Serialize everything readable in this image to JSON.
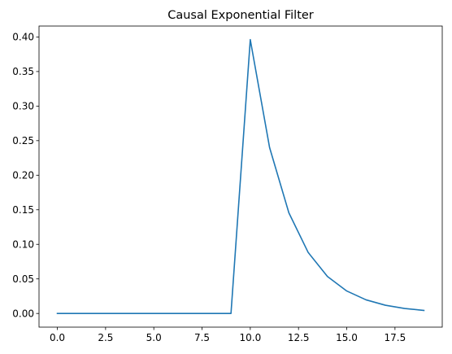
{
  "chart_data": {
    "type": "line",
    "title": "Causal Exponential Filter",
    "xlabel": "",
    "ylabel": "",
    "xlim": [
      -0.95,
      19.95
    ],
    "ylim": [
      -0.0198,
      0.4158
    ],
    "x_ticks": [
      0,
      2.5,
      5,
      7.5,
      10,
      12.5,
      15,
      17.5
    ],
    "x_tick_labels": [
      "0.0",
      "2.5",
      "5.0",
      "7.5",
      "10.0",
      "12.5",
      "15.0",
      "17.5"
    ],
    "y_ticks": [
      0,
      0.05,
      0.1,
      0.15,
      0.2,
      0.25,
      0.3,
      0.35,
      0.4
    ],
    "y_tick_labels": [
      "0.00",
      "0.05",
      "0.10",
      "0.15",
      "0.20",
      "0.25",
      "0.30",
      "0.35",
      "0.40"
    ],
    "grid": false,
    "legend": "none",
    "series": [
      {
        "color": "#1f77b4",
        "x": [
          0,
          1,
          2,
          3,
          4,
          5,
          6,
          7,
          8,
          9,
          10,
          11,
          12,
          13,
          14,
          15,
          16,
          17,
          18,
          19
        ],
        "values": [
          0,
          0,
          0,
          0,
          0,
          0,
          0,
          0,
          0,
          0,
          0.3961,
          0.2401,
          0.1456,
          0.0883,
          0.0535,
          0.0325,
          0.0197,
          0.0119,
          0.0072,
          0.0044
        ]
      }
    ]
  }
}
